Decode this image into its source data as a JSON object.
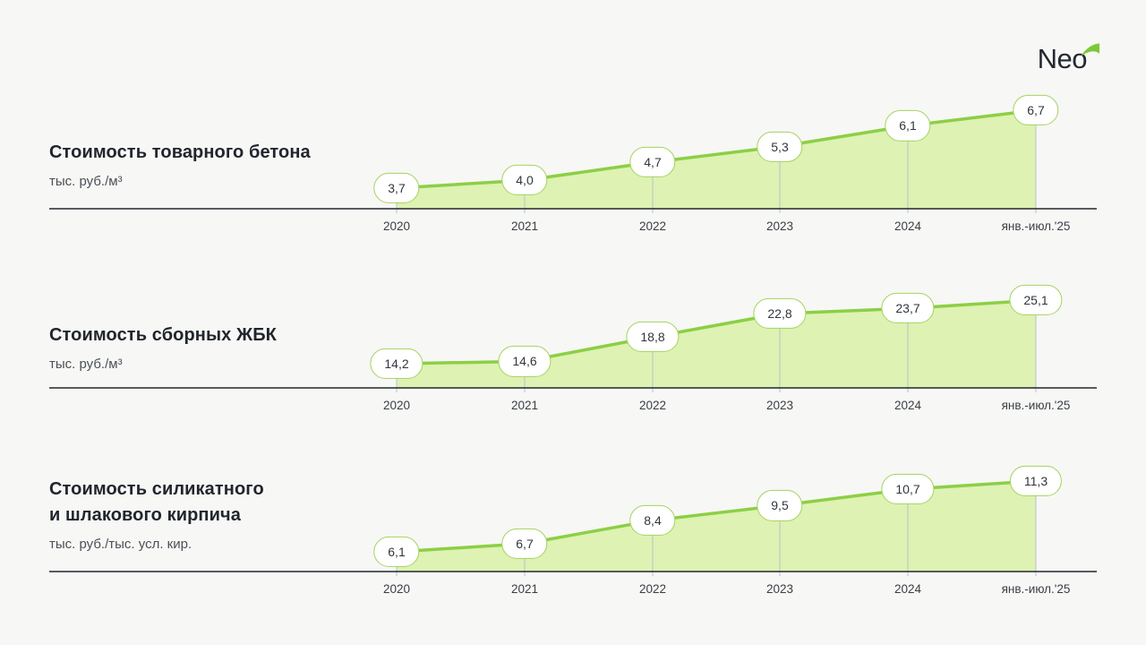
{
  "logo": {
    "text": "Neo"
  },
  "colors": {
    "background": "#f7f7f5",
    "accent_line": "#8ccf45",
    "area_fill": "#def2b3",
    "pill_border": "#a4d45f",
    "pill_background": "#ffffff",
    "axis_line": "#22262d",
    "connector": "#b5c3ca",
    "logo_swoosh": "#7cc83c",
    "title_text": "#21252d"
  },
  "chart_data": [
    {
      "type": "area",
      "title": "Стоимость товарного бетона",
      "title_lines": [
        "Стоимость товарного бетона"
      ],
      "unit": "тыс. руб./м³",
      "categories": [
        "2020",
        "2021",
        "2022",
        "2023",
        "2024",
        "янв.-июл.'25"
      ],
      "values": [
        3.7,
        4.0,
        4.7,
        5.3,
        6.1,
        6.7
      ],
      "labels": [
        "3,7",
        "4,0",
        "4,7",
        "5,3",
        "6,1",
        "6,7"
      ],
      "legend_position": "none",
      "grid": false
    },
    {
      "type": "area",
      "title": "Стоимость сборных ЖБК",
      "title_lines": [
        "Стоимость сборных ЖБК"
      ],
      "unit": "тыс. руб./м³",
      "categories": [
        "2020",
        "2021",
        "2022",
        "2023",
        "2024",
        "янв.-июл.'25"
      ],
      "values": [
        14.2,
        14.6,
        18.8,
        22.8,
        23.7,
        25.1
      ],
      "labels": [
        "14,2",
        "14,6",
        "18,8",
        "22,8",
        "23,7",
        "25,1"
      ],
      "legend_position": "none",
      "grid": false
    },
    {
      "type": "area",
      "title": "Стоимость силикатного и шлакового кирпича",
      "title_lines": [
        "Стоимость силикатного",
        "и шлакового кирпича"
      ],
      "unit": "тыс. руб./тыс. усл. кир.",
      "categories": [
        "2020",
        "2021",
        "2022",
        "2023",
        "2024",
        "янв.-июл.'25"
      ],
      "values": [
        6.1,
        6.7,
        8.4,
        9.5,
        10.7,
        11.3
      ],
      "labels": [
        "6,1",
        "6,7",
        "8,4",
        "9,5",
        "10,7",
        "11,3"
      ],
      "legend_position": "none",
      "grid": false
    }
  ]
}
